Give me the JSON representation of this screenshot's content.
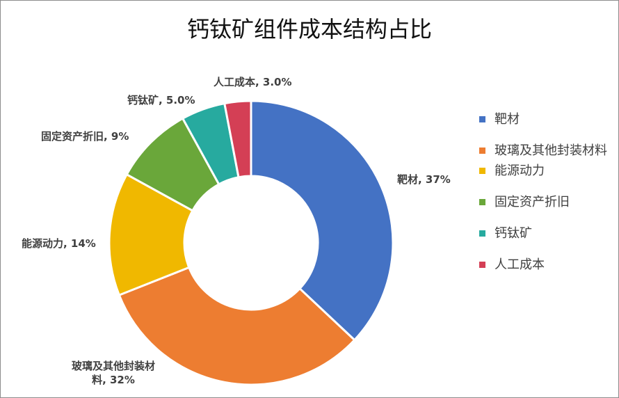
{
  "chart_data": {
    "type": "pie",
    "title": "钙钛矿组件成本结构占比",
    "categories": [
      "靶材",
      "玻璃及其他封装材料",
      "能源动力",
      "固定资产折旧",
      "钙钛矿",
      "人工成本"
    ],
    "values": [
      37,
      32,
      14,
      9,
      5,
      3
    ],
    "data_labels": [
      [
        "靶材, 37%"
      ],
      [
        "玻璃及其他封装材",
        "料, 32%"
      ],
      [
        "能源动力, 14%"
      ],
      [
        "固定资产折旧, 9%"
      ],
      [
        "钙钛矿, 5.0%"
      ],
      [
        "人工成本, 3.0%"
      ]
    ],
    "colors": [
      "#4472c4",
      "#ed7d31",
      "#f0b800",
      "#6aa73a",
      "#27aa9f",
      "#d43f55"
    ],
    "legend_labels": [
      "靶材",
      "玻璃及其他封装材料",
      "能源动力",
      "固定资产折旧",
      "钙钛矿",
      "人工成本"
    ],
    "legend": "right",
    "donut": true
  }
}
